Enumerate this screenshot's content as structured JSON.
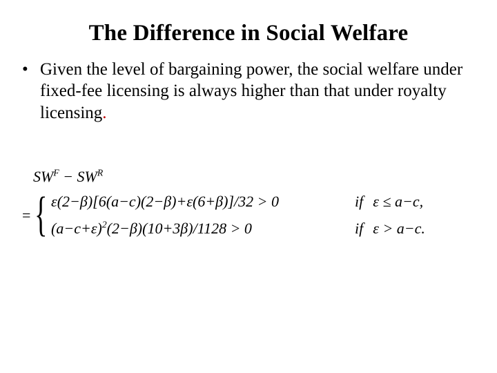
{
  "title": "The Difference in Social Welfare",
  "bullet": {
    "marker": "•",
    "text_main": "Given the level of bargaining power, the social welfare under fixed-fee licensing is always higher than that under royalty licensing",
    "period": "."
  },
  "equation": {
    "lhs_html": "SW<span class='sup'>F</span> − SW<span class='sup'>R</span>",
    "eq_sign": "=",
    "cases": [
      {
        "expr_html": "<span class='g'>ε</span>(2−<span class='g'>β</span>)[6(<span class='g'>a</span>−<span class='g'>c</span>)(2−<span class='g'>β</span>)+<span class='g'>ε</span>(6+<span class='g'>β</span>)]/32 &gt; 0",
        "if": "if",
        "cond_html": "<span class='g'>ε</span> ≤ <span class='g'>a</span>−<span class='g'>c</span>,",
        "label": "case-eps-le"
      },
      {
        "expr_html": "(<span class='g'>a</span>−<span class='g'>c</span>+<span class='g'>ε</span>)<span class='sup'>2</span>(2−<span class='g'>β</span>)(10+3<span class='g'>β</span>)/1128 &gt; 0",
        "if": "if",
        "cond_html": "<span class='g'>ε</span> &gt; <span class='g'>a</span>−<span class='g'>c</span>.",
        "label": "case-eps-gt"
      }
    ]
  },
  "colors": {
    "text": "#000000",
    "period": "#c00000",
    "background": "#ffffff"
  }
}
